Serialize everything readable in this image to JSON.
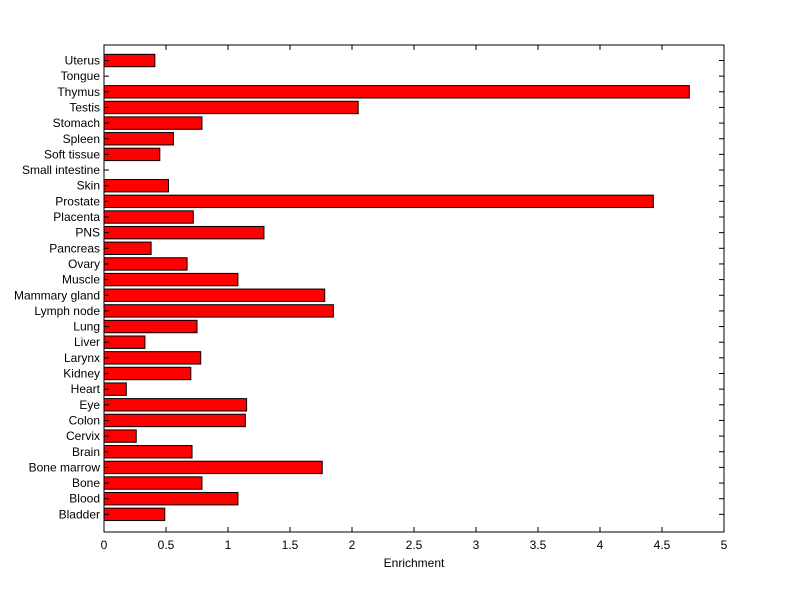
{
  "chart_data": {
    "type": "bar",
    "orientation": "horizontal",
    "categories": [
      "Uterus",
      "Tongue",
      "Thymus",
      "Testis",
      "Stomach",
      "Spleen",
      "Soft tissue",
      "Small intestine",
      "Skin",
      "Prostate",
      "Placenta",
      "PNS",
      "Pancreas",
      "Ovary",
      "Muscle",
      "Mammary gland",
      "Lymph node",
      "Lung",
      "Liver",
      "Larynx",
      "Kidney",
      "Heart",
      "Eye",
      "Colon",
      "Cervix",
      "Brain",
      "Bone marrow",
      "Bone",
      "Blood",
      "Bladder"
    ],
    "values": [
      0.41,
      0,
      4.72,
      2.05,
      0.79,
      0.56,
      0.45,
      0,
      0.52,
      4.43,
      0.72,
      1.29,
      0.38,
      0.67,
      1.08,
      1.78,
      1.85,
      0.75,
      0.33,
      0.78,
      0.7,
      0.18,
      1.15,
      1.14,
      0.26,
      0.71,
      1.76,
      0.79,
      1.08,
      0.49
    ],
    "xlabel": "Enrichment",
    "ylabel": "",
    "title": "",
    "xlim": [
      0,
      5
    ],
    "xticks": [
      "0",
      "0.5",
      "1",
      "1.5",
      "2",
      "2.5",
      "3",
      "3.5",
      "4",
      "4.5",
      "5"
    ],
    "bar_color": "#ff0000",
    "grid": false
  }
}
